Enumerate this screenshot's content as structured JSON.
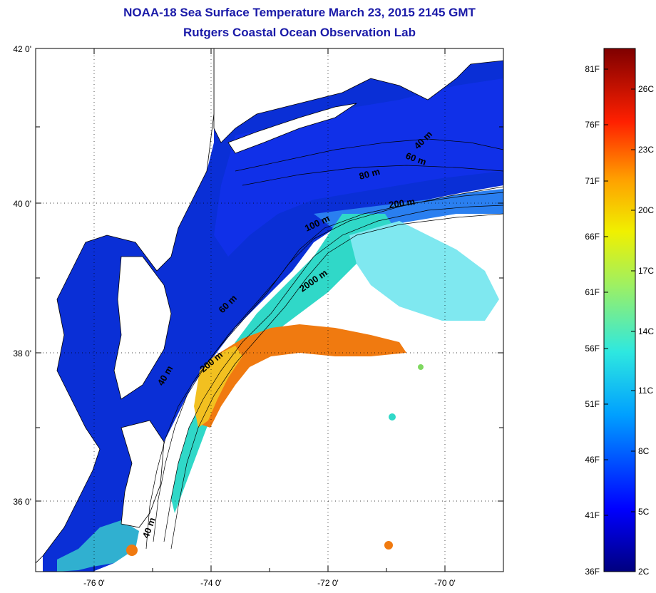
{
  "header": {
    "title": "NOAA-18 Sea Surface Temperature March 23, 2015 2145 GMT",
    "subtitle": "Rutgers Coastal Ocean Observation Lab"
  },
  "map": {
    "lat_ticks": [
      "42 0'",
      "40 0'",
      "38 0'",
      "36 0'"
    ],
    "lon_ticks": [
      "-76 0'",
      "-74 0'",
      "-72 0'",
      "-70 0'"
    ],
    "contour_labels": [
      "40 m",
      "60 m",
      "80 m",
      "200 m",
      "100 m",
      "2000 m",
      "60 m",
      "200 m",
      "40 m",
      "40 m"
    ],
    "colors": {
      "land": "#ffffff",
      "coast": "#000000",
      "cold": "#0a1fd6",
      "warm": "#e85a0a"
    }
  },
  "colorbar": {
    "fahrenheit": [
      "81F",
      "76F",
      "71F",
      "66F",
      "61F",
      "56F",
      "51F",
      "46F",
      "41F",
      "36F"
    ],
    "celsius": [
      "26C",
      "23C",
      "20C",
      "17C",
      "14C",
      "11C",
      "8C",
      "5C",
      "2C"
    ]
  }
}
